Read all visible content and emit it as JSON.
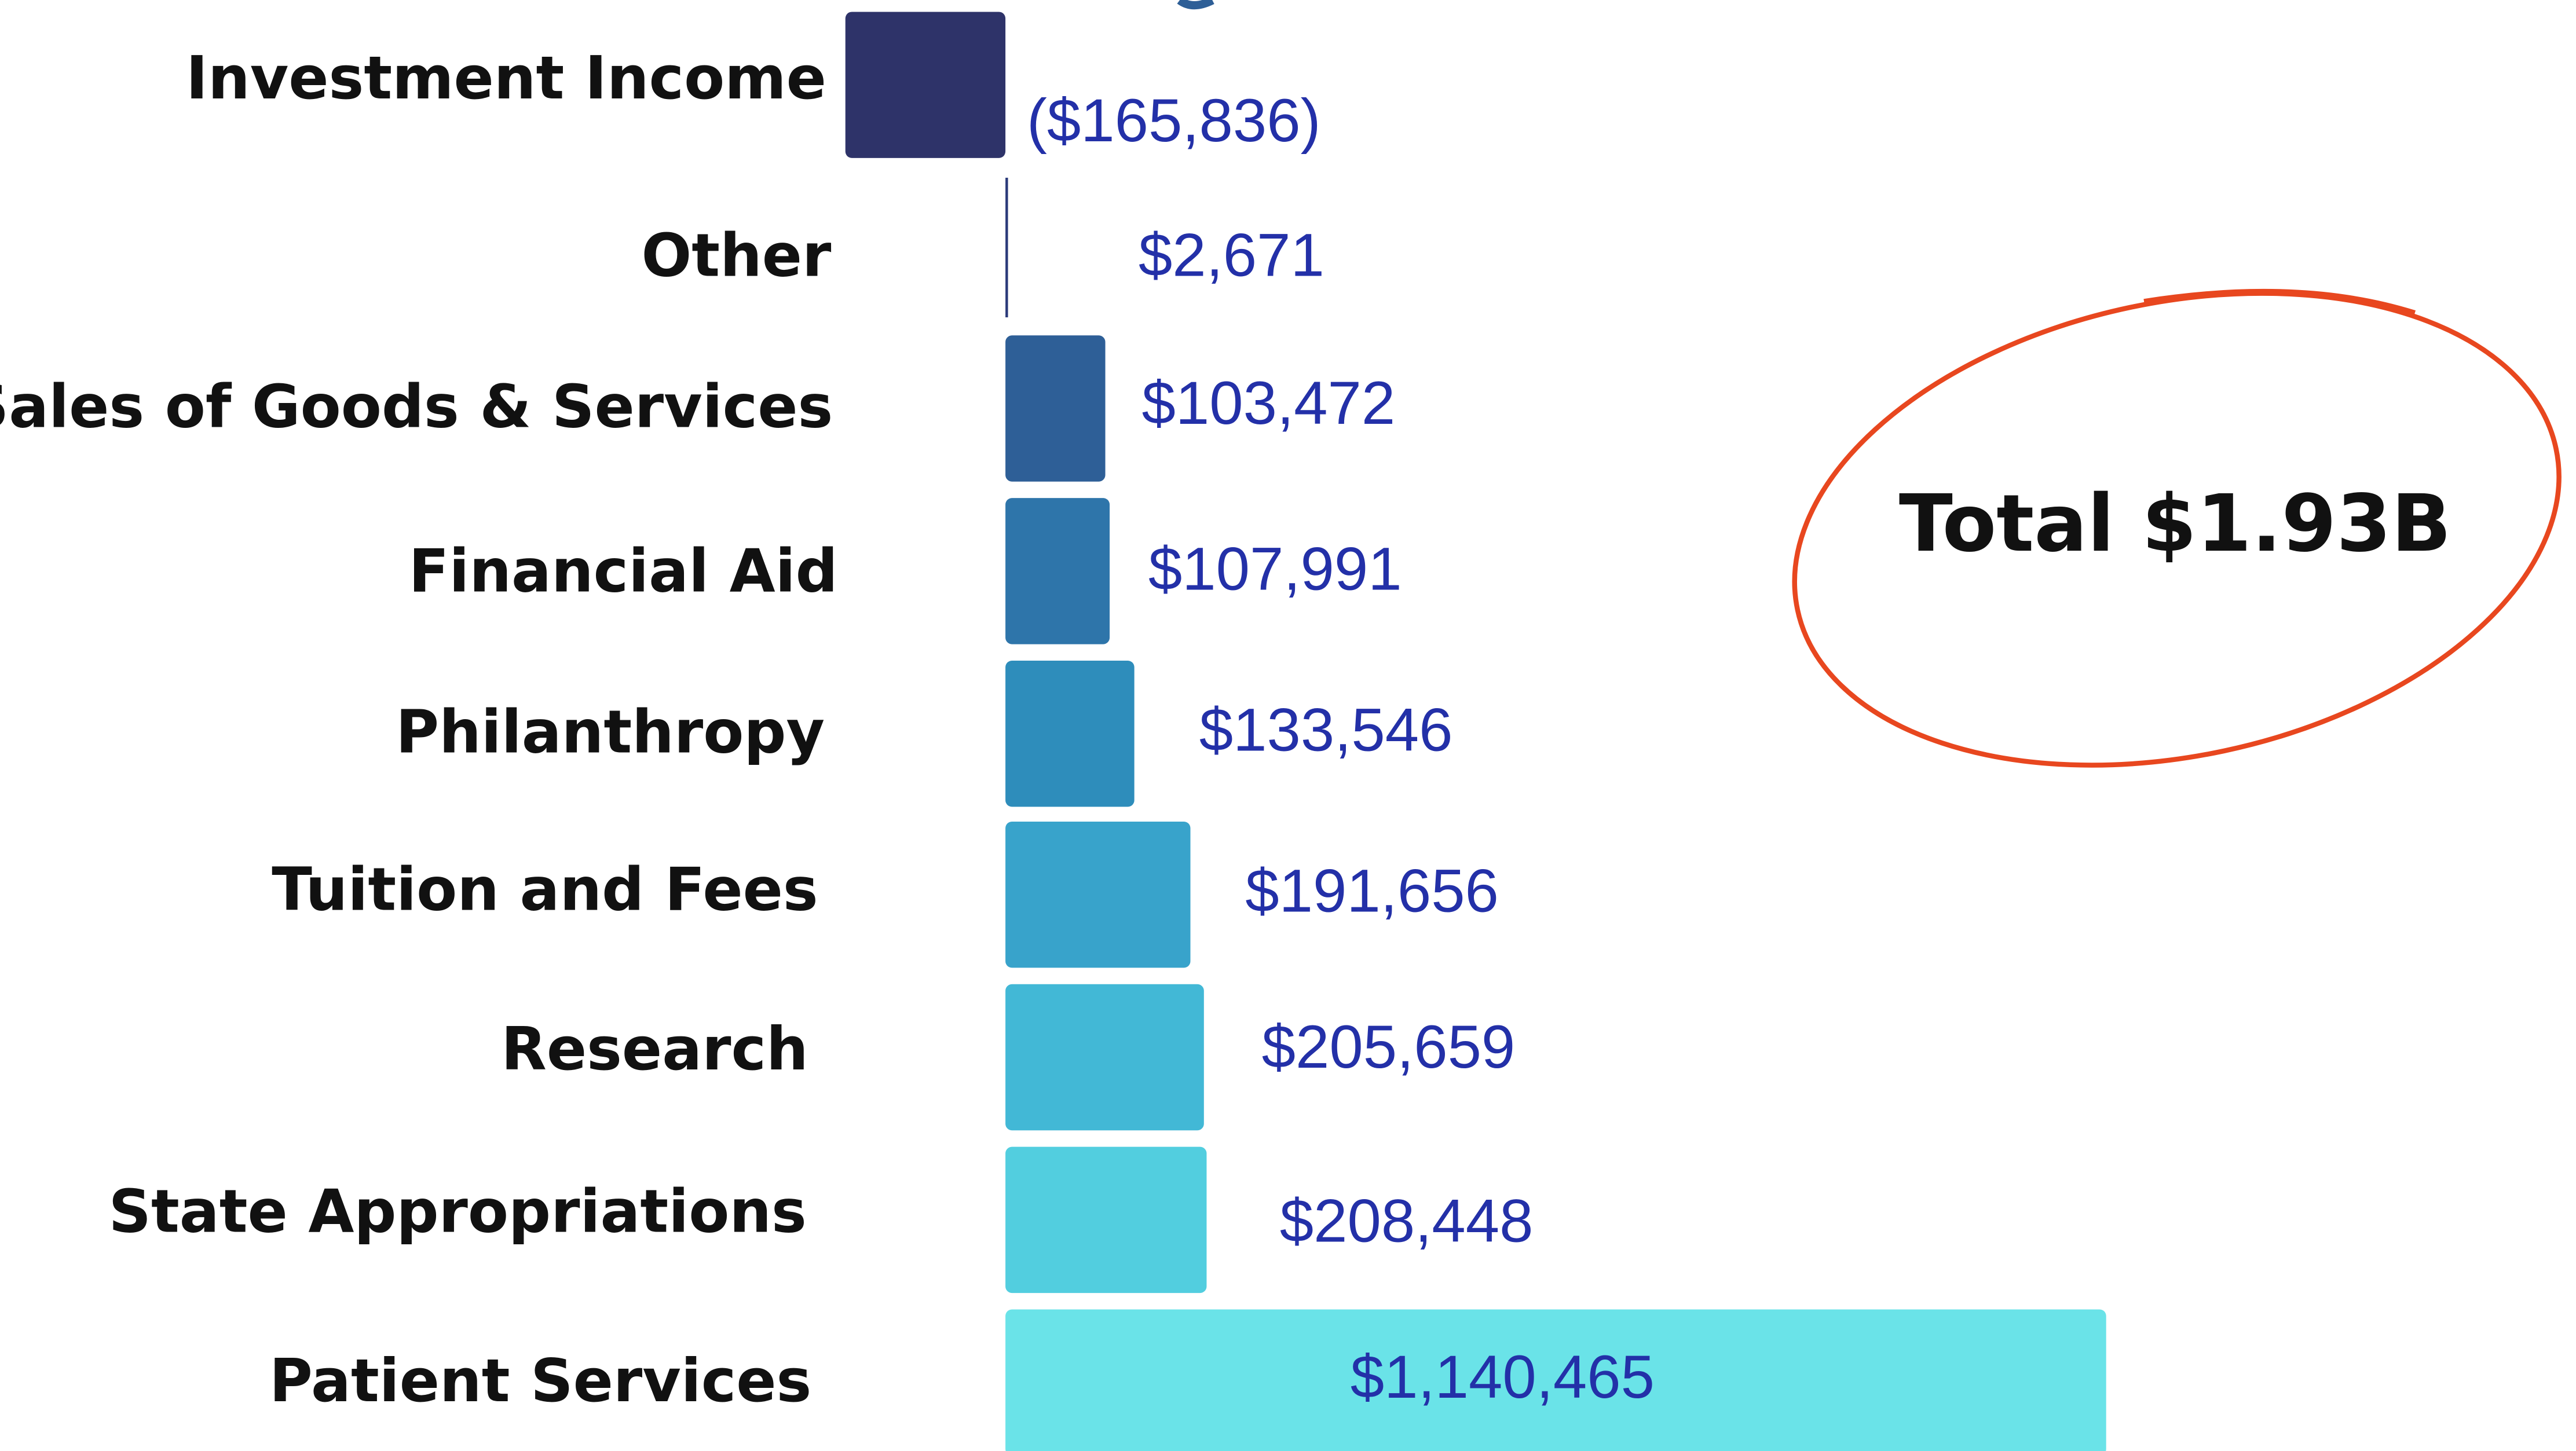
{
  "chart_data": {
    "type": "hbar",
    "categories": [
      "Investment Income",
      "Other",
      "Sales of Goods & Services",
      "Financial Aid",
      "Philanthropy",
      "Tuition and Fees",
      "Research",
      "State Appropriations",
      "Patient Services"
    ],
    "values": [
      -165836,
      2671,
      103472,
      107991,
      133546,
      191656,
      205659,
      208448,
      1140465
    ],
    "value_labels": [
      "($165,836)",
      "$2,671",
      "$103,472",
      "$107,991",
      "$133,546",
      "$191,656",
      "$205,659",
      "$208,448",
      "$1,140,465"
    ],
    "colors": [
      "#2e3369",
      "#2b3a7a",
      "#2e5f97",
      "#2e75aa",
      "#2e8dbb",
      "#38a3cb",
      "#42b8d6",
      "#52cedf",
      "#6ae3e8"
    ],
    "annotation": "Total $1.93B"
  }
}
